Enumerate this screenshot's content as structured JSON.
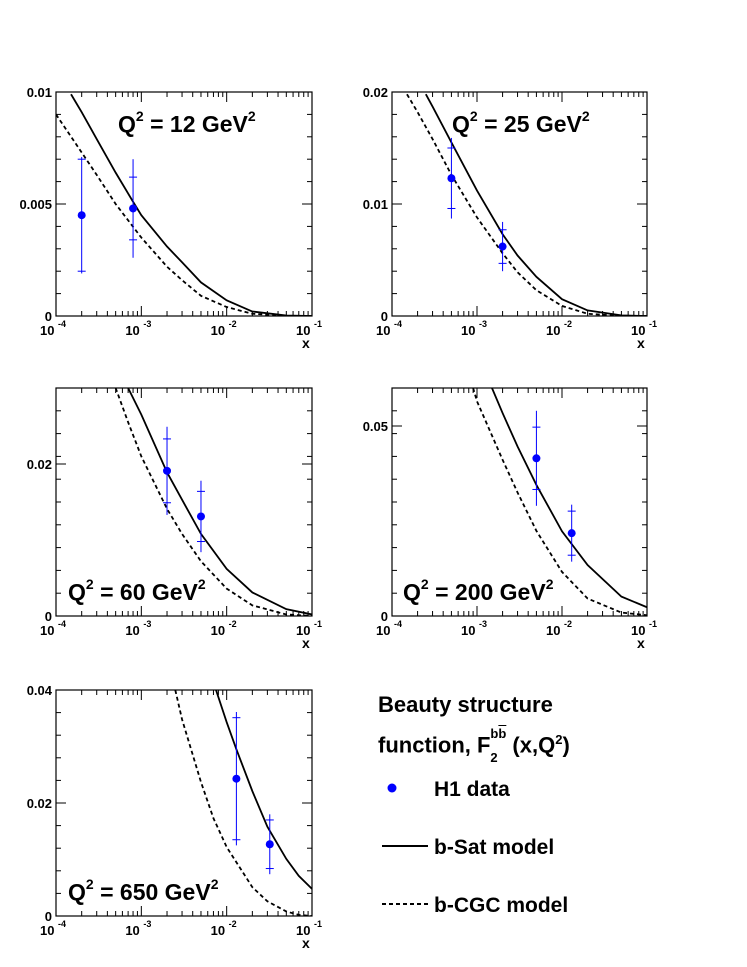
{
  "chart_data": [
    {
      "type": "line",
      "title": "Q^2 = 12 GeV^2",
      "q2_label": "Q",
      "q2_value": " = 12 GeV",
      "xlabel": "x",
      "x_scale": "log",
      "xlim": [
        0.0001,
        0.1
      ],
      "ylim": [
        0,
        0.01
      ],
      "y_ticks": [
        "0",
        "0.005",
        "0.01"
      ],
      "x_ticks": [
        "10",
        "10",
        "10",
        "10"
      ],
      "x_tick_exponents": [
        "-4",
        "-3",
        "-2",
        "-1"
      ],
      "series": [
        {
          "name": "H1 data",
          "kind": "points",
          "x": [
            0.0002,
            0.0008
          ],
          "y": [
            0.0045,
            0.0048
          ],
          "err_stat": [
            0.0025,
            0.0014
          ],
          "err_tot": [
            0.0026,
            0.0022
          ]
        },
        {
          "name": "b-Sat model",
          "kind": "line",
          "x": [
            0.00015,
            0.0002,
            0.0003,
            0.0005,
            0.0008,
            0.001,
            0.002,
            0.003,
            0.005,
            0.01,
            0.02,
            0.05,
            0.1
          ],
          "y": [
            0.0099,
            0.0091,
            0.0079,
            0.0064,
            0.0051,
            0.0045,
            0.0031,
            0.0024,
            0.0015,
            0.0007,
            0.0002,
            2e-05,
            0.0
          ]
        },
        {
          "name": "b-CGC model",
          "kind": "dashed",
          "x": [
            0.0001,
            0.0002,
            0.0003,
            0.0005,
            0.001,
            0.002,
            0.003,
            0.005,
            0.01,
            0.02,
            0.05,
            0.1
          ],
          "y": [
            0.009,
            0.0073,
            0.0063,
            0.005,
            0.0035,
            0.0022,
            0.0016,
            0.0009,
            0.0004,
            0.0001,
            0.0,
            0.0
          ]
        }
      ]
    },
    {
      "type": "line",
      "title": "Q^2 = 25 GeV^2",
      "q2_label": "Q",
      "q2_value": " = 25 GeV",
      "xlabel": "x",
      "x_scale": "log",
      "xlim": [
        0.0001,
        0.1
      ],
      "ylim": [
        0,
        0.02
      ],
      "y_ticks": [
        "0",
        "0.01",
        "0.02"
      ],
      "x_ticks": [
        "10",
        "10",
        "10",
        "10"
      ],
      "x_tick_exponents": [
        "-4",
        "-3",
        "-2",
        "-1"
      ],
      "series": [
        {
          "name": "H1 data",
          "kind": "points",
          "x": [
            0.0005,
            0.002
          ],
          "y": [
            0.0123,
            0.0062
          ],
          "err_stat": [
            0.0027,
            0.0015
          ],
          "err_tot": [
            0.0036,
            0.0022
          ]
        },
        {
          "name": "b-Sat model",
          "kind": "line",
          "x": [
            0.00025,
            0.0003,
            0.0005,
            0.001,
            0.002,
            0.003,
            0.005,
            0.01,
            0.02,
            0.05,
            0.1
          ],
          "y": [
            0.0198,
            0.0187,
            0.0155,
            0.0112,
            0.0073,
            0.0054,
            0.0035,
            0.0015,
            0.0005,
            5e-05,
            0.0
          ]
        },
        {
          "name": "b-CGC model",
          "kind": "dashed",
          "x": [
            0.00015,
            0.0002,
            0.0003,
            0.0005,
            0.001,
            0.002,
            0.003,
            0.005,
            0.01,
            0.02,
            0.05,
            0.1
          ],
          "y": [
            0.0198,
            0.0182,
            0.0158,
            0.0126,
            0.0088,
            0.0056,
            0.0039,
            0.0023,
            0.0009,
            0.0002,
            0.0,
            0.0
          ]
        }
      ]
    },
    {
      "type": "line",
      "title": "Q^2 = 60 GeV^2",
      "q2_label": "Q",
      "q2_value": " = 60 GeV",
      "xlabel": "x",
      "x_scale": "log",
      "xlim": [
        0.0001,
        0.1
      ],
      "ylim": [
        0,
        0.03
      ],
      "y_ticks": [
        "0",
        "0.02"
      ],
      "y_tick_values": [
        0,
        0.02
      ],
      "x_ticks": [
        "10",
        "10",
        "10",
        "10"
      ],
      "x_tick_exponents": [
        "-4",
        "-3",
        "-2",
        "-1"
      ],
      "series": [
        {
          "name": "H1 data",
          "kind": "points",
          "x": [
            0.002,
            0.005
          ],
          "y": [
            0.0191,
            0.0131
          ],
          "err_stat": [
            0.0042,
            0.0033
          ],
          "err_tot": [
            0.0058,
            0.0047
          ]
        },
        {
          "name": "b-Sat model",
          "kind": "line",
          "x": [
            0.0007,
            0.001,
            0.002,
            0.003,
            0.005,
            0.01,
            0.02,
            0.05,
            0.1
          ],
          "y": [
            0.03,
            0.0265,
            0.0189,
            0.0153,
            0.0108,
            0.0062,
            0.0031,
            0.0009,
            0.0002
          ]
        },
        {
          "name": "b-CGC model",
          "kind": "dashed",
          "x": [
            0.0005,
            0.0007,
            0.001,
            0.002,
            0.003,
            0.005,
            0.01,
            0.02,
            0.05,
            0.1
          ],
          "y": [
            0.03,
            0.0255,
            0.021,
            0.0141,
            0.0108,
            0.0072,
            0.0036,
            0.0014,
            0.0002,
            0.0
          ]
        }
      ]
    },
    {
      "type": "line",
      "title": "Q^2 = 200 GeV^2",
      "q2_label": "Q",
      "q2_value": " = 200 GeV",
      "xlabel": "x",
      "x_scale": "log",
      "xlim": [
        0.0001,
        0.1
      ],
      "ylim": [
        0,
        0.06
      ],
      "y_ticks": [
        "0",
        "0.05"
      ],
      "y_tick_values": [
        0,
        0.05
      ],
      "x_ticks": [
        "10",
        "10",
        "10",
        "10"
      ],
      "x_tick_exponents": [
        "-4",
        "-3",
        "-2",
        "-1"
      ],
      "series": [
        {
          "name": "H1 data",
          "kind": "points",
          "x": [
            0.005,
            0.013
          ],
          "y": [
            0.0415,
            0.0218
          ],
          "err_stat": [
            0.0082,
            0.0058
          ],
          "err_tot": [
            0.0125,
            0.0075
          ]
        },
        {
          "name": "b-Sat model",
          "kind": "line",
          "x": [
            0.0015,
            0.002,
            0.003,
            0.005,
            0.01,
            0.02,
            0.05,
            0.1
          ],
          "y": [
            0.06,
            0.0534,
            0.0446,
            0.0345,
            0.0223,
            0.0134,
            0.0051,
            0.0023
          ]
        },
        {
          "name": "b-CGC model",
          "kind": "dashed",
          "x": [
            0.0009,
            0.001,
            0.002,
            0.003,
            0.005,
            0.01,
            0.02,
            0.05,
            0.1
          ],
          "y": [
            0.06,
            0.0565,
            0.0411,
            0.0325,
            0.0224,
            0.0116,
            0.0046,
            0.0009,
            0.0002
          ]
        }
      ]
    },
    {
      "type": "line",
      "title": "Q^2 = 650 GeV^2",
      "q2_label": "Q",
      "q2_value": " = 650 GeV",
      "xlabel": "x",
      "x_scale": "log",
      "xlim": [
        0.0001,
        0.1
      ],
      "ylim": [
        0,
        0.04
      ],
      "y_ticks": [
        "0",
        "0.02",
        "0.04"
      ],
      "y_tick_values": [
        0,
        0.02,
        0.04
      ],
      "x_ticks": [
        "10",
        "10",
        "10",
        "10"
      ],
      "x_tick_exponents": [
        "-4",
        "-3",
        "-2",
        "-1"
      ],
      "series": [
        {
          "name": "H1 data",
          "kind": "points",
          "x": [
            0.013,
            0.032
          ],
          "y": [
            0.0243,
            0.0127
          ],
          "err_stat": [
            0.0108,
            0.0043
          ],
          "err_tot": [
            0.0118,
            0.0053
          ]
        },
        {
          "name": "b-Sat model",
          "kind": "line",
          "x": [
            0.0075,
            0.01,
            0.013,
            0.02,
            0.03,
            0.05,
            0.07,
            0.1
          ],
          "y": [
            0.04,
            0.0343,
            0.0295,
            0.0221,
            0.0158,
            0.0101,
            0.0071,
            0.0048
          ]
        },
        {
          "name": "b-CGC model",
          "kind": "dashed",
          "x": [
            0.0025,
            0.003,
            0.005,
            0.007,
            0.01,
            0.02,
            0.03,
            0.05,
            0.07,
            0.1
          ],
          "y": [
            0.04,
            0.0348,
            0.0237,
            0.0173,
            0.0122,
            0.0051,
            0.0026,
            0.0008,
            0.0002,
            0.0
          ]
        }
      ]
    }
  ],
  "legend": {
    "title_line1": "Beauty structure",
    "title_line2_prefix": "function, F",
    "title_sup": "b",
    "title_sup2": "b",
    "title_sub": "2",
    "title_args": "(x,Q",
    "title_args_sup": "2",
    "title_args_end": ")",
    "items": [
      {
        "label": "H1 data",
        "symbol": "point",
        "color": "#0000ff"
      },
      {
        "label": "b-Sat model",
        "symbol": "solid-line",
        "color": "#000000"
      },
      {
        "label": "b-CGC model",
        "symbol": "dashed-line",
        "color": "#000000"
      }
    ]
  },
  "colors": {
    "data": "#0000ff",
    "model": "#000000",
    "background": "#ffffff"
  }
}
